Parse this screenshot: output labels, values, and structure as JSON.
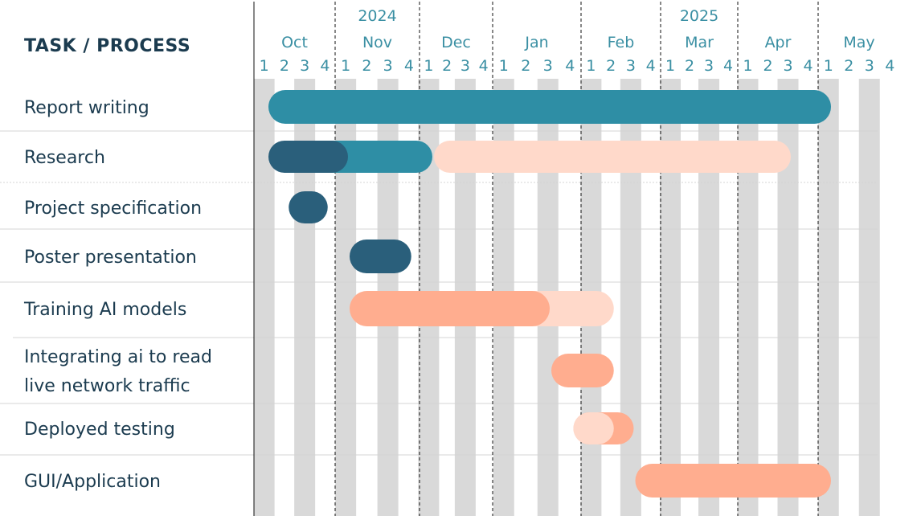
{
  "header": {
    "title": "TASK / PROCESS"
  },
  "colors": {
    "teal": "#2e8ea5",
    "dark_teal": "#2a5f7b",
    "salmon": "#ffad8f",
    "light_peach": "#ffd9ca",
    "week_column": "#d9d9d9",
    "axis_text": "#3a8fa3",
    "task_text": "#1b3b4f"
  },
  "chart_data": {
    "type": "gantt",
    "title": "TASK / PROCESS",
    "years": [
      {
        "label": "2024",
        "month_index": 1
      },
      {
        "label": "2025",
        "month_index": 5
      }
    ],
    "months": [
      "Oct",
      "Nov",
      "Dec",
      "Jan",
      "Feb",
      "Mar",
      "Apr",
      "May"
    ],
    "weeks": [
      "1",
      "2",
      "3",
      "4"
    ],
    "tasks": [
      {
        "label": "Report writing",
        "bars": [
          {
            "start": 0.0,
            "end": 7.0,
            "color": "teal"
          }
        ]
      },
      {
        "label": "Research",
        "bars": [
          {
            "start": 2.0,
            "end": 6.5,
            "color": "light_peach"
          },
          {
            "start": 0.5,
            "end": 2.0,
            "color": "teal"
          },
          {
            "start": 0.0,
            "end": 1.0,
            "color": "dark_teal"
          }
        ]
      },
      {
        "label": "Project specification",
        "bars": [
          {
            "start": 0.25,
            "end": 0.75,
            "color": "dark_teal"
          }
        ]
      },
      {
        "label": "Poster presentation",
        "bars": [
          {
            "start": 1.0,
            "end": 1.75,
            "color": "dark_teal"
          }
        ]
      },
      {
        "label": "Training AI models",
        "bars": [
          {
            "start": 1.0,
            "end": 4.25,
            "color": "light_peach"
          },
          {
            "start": 1.0,
            "end": 3.5,
            "color": "salmon"
          }
        ]
      },
      {
        "label_lines": [
          "Integrating ai to read",
          "live network traffic"
        ],
        "bars": [
          {
            "start": 3.5,
            "end": 4.25,
            "color": "salmon"
          }
        ]
      },
      {
        "label": "Deployed testing",
        "bars": [
          {
            "start": 3.75,
            "end": 4.5,
            "color": "salmon"
          },
          {
            "start": 3.75,
            "end": 4.25,
            "color": "light_peach"
          }
        ]
      },
      {
        "label": "GUI/Application",
        "bars": [
          {
            "start": 4.5,
            "end": 7.0,
            "color": "salmon"
          }
        ]
      }
    ]
  }
}
